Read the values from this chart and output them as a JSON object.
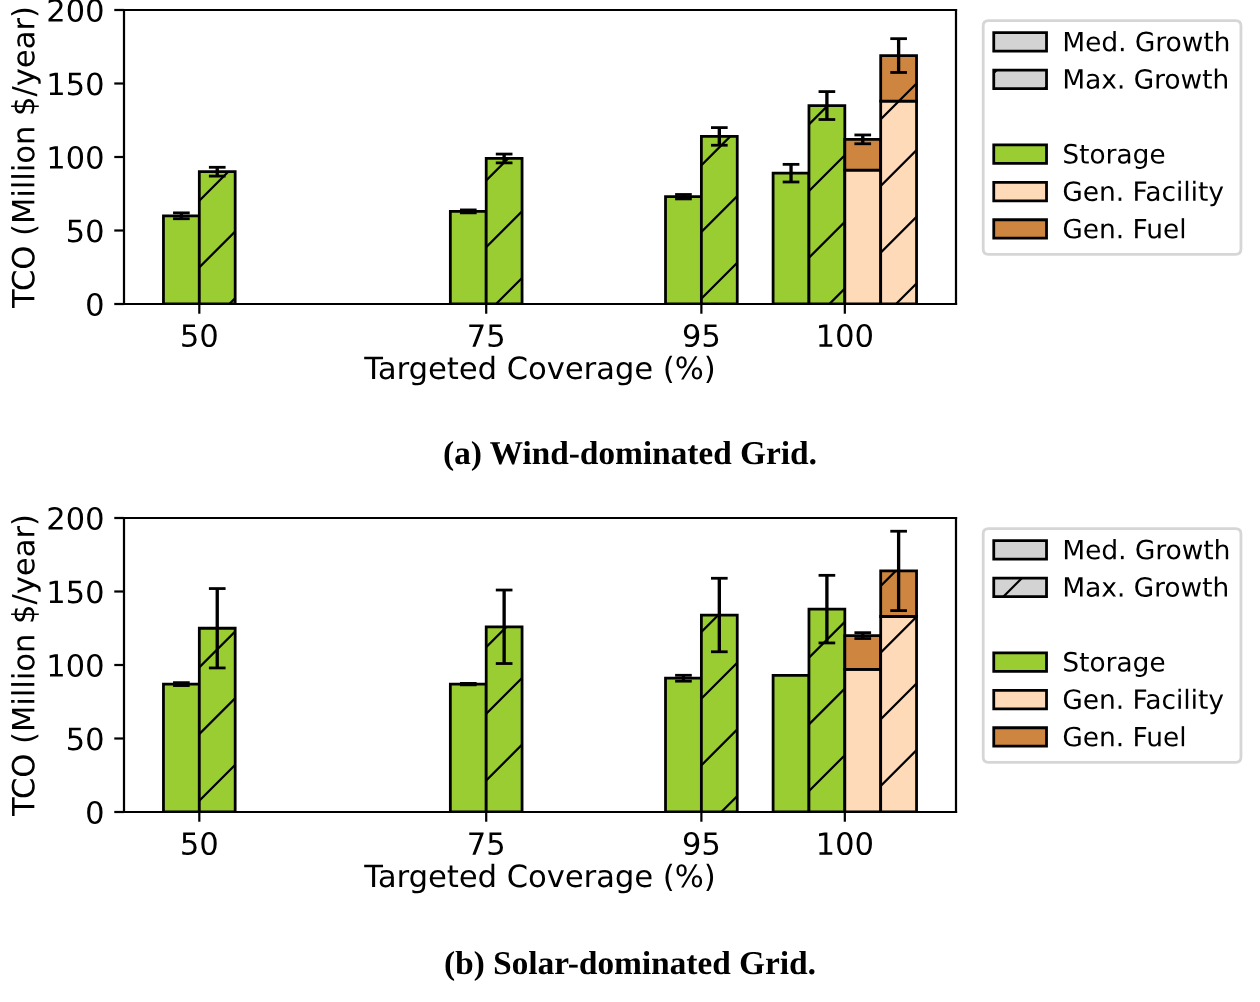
{
  "chart_data": [
    {
      "type": "bar",
      "stacked": true,
      "categories": [
        "50",
        null,
        null,
        null,
        null,
        null,
        null,
        null,
        "75",
        null,
        null,
        null,
        null,
        null,
        "95",
        null,
        null,
        null,
        "100",
        null,
        null
      ],
      "xlabel": "Targeted Coverage (%)",
      "ylabel": "TCO (Million $/year)",
      "ylim": [
        0,
        200
      ],
      "yticks": [
        0,
        50,
        100,
        150,
        200
      ],
      "legend": "right",
      "annotations": [
        "(a) Wind-dominated Grid.",
        "Med. Growth",
        "Max. Growth"
      ],
      "series": [
        {
          "name": "Storage",
          "color": "#9acd32",
          "values": [
            60,
            null,
            null,
            null,
            null,
            null,
            null,
            null,
            63,
            null,
            null,
            null,
            null,
            null,
            73,
            null,
            null,
            89,
            null,
            null,
            null
          ],
          "errors": [
            2,
            null,
            null,
            null,
            null,
            null,
            null,
            null,
            1,
            null,
            null,
            null,
            null,
            null,
            1.5,
            null,
            null,
            6,
            null,
            null,
            null
          ]
        },
        {
          "color": "#9acd32",
          "values": [
            null,
            90,
            null,
            null,
            null,
            null,
            null,
            null,
            null,
            99,
            null,
            null,
            null,
            null,
            null,
            114,
            null,
            null,
            135,
            null,
            null
          ],
          "errors": [
            null,
            3,
            null,
            null,
            null,
            null,
            null,
            null,
            null,
            3,
            null,
            null,
            null,
            null,
            null,
            6,
            null,
            null,
            9.5,
            null,
            null
          ]
        },
        {
          "name": "Gen. Facility",
          "color": "#ffdab9",
          "values": [
            null,
            null,
            null,
            null,
            null,
            null,
            null,
            null,
            null,
            null,
            null,
            null,
            null,
            null,
            null,
            null,
            null,
            null,
            null,
            91,
            null
          ]
        },
        {
          "name": "Gen. Fuel",
          "color": "#cd853f",
          "values": [
            null,
            null,
            null,
            null,
            null,
            null,
            null,
            null,
            null,
            null,
            null,
            null,
            null,
            null,
            null,
            null,
            null,
            null,
            null,
            21,
            null
          ],
          "errors": [
            null,
            null,
            null,
            null,
            null,
            null,
            null,
            null,
            null,
            null,
            null,
            null,
            null,
            null,
            null,
            null,
            null,
            null,
            null,
            3,
            null
          ]
        },
        {
          "color": "#ffdab9",
          "values": [
            null,
            null,
            null,
            null,
            null,
            null,
            null,
            null,
            null,
            null,
            null,
            null,
            null,
            null,
            null,
            null,
            null,
            null,
            null,
            null,
            138
          ]
        },
        {
          "color": "#cd853f",
          "values": [
            null,
            null,
            null,
            null,
            null,
            null,
            null,
            null,
            null,
            null,
            null,
            null,
            null,
            null,
            null,
            null,
            null,
            null,
            null,
            null,
            31
          ],
          "errors": [
            null,
            null,
            null,
            null,
            null,
            null,
            null,
            null,
            null,
            null,
            null,
            null,
            null,
            null,
            null,
            null,
            null,
            null,
            null,
            null,
            11.5
          ]
        }
      ]
    },
    {
      "type": "bar",
      "stacked": true,
      "categories": [
        "50",
        null,
        null,
        null,
        null,
        null,
        null,
        null,
        "75",
        null,
        null,
        null,
        null,
        null,
        "95",
        null,
        null,
        null,
        "100",
        null,
        null
      ],
      "xlabel": "Targeted Coverage (%)",
      "ylabel": "TCO (Million $/year)",
      "ylim": [
        0,
        200
      ],
      "yticks": [
        0,
        50,
        100,
        150,
        200
      ],
      "legend": "right",
      "annotations": [
        "(b) Solar-dominated Grid.",
        "Med. Growth",
        "Max. Growth"
      ],
      "series": [
        {
          "name": "Storage",
          "color": "#9acd32",
          "values": [
            87,
            null,
            null,
            null,
            null,
            null,
            null,
            null,
            87,
            null,
            null,
            null,
            null,
            null,
            91,
            null,
            null,
            93,
            null,
            null,
            null
          ],
          "errors": [
            1,
            null,
            null,
            null,
            null,
            null,
            null,
            null,
            0.5,
            null,
            null,
            null,
            null,
            null,
            2,
            null,
            null,
            null,
            null,
            null,
            null
          ]
        },
        {
          "color": "#9acd32",
          "values": [
            null,
            125,
            null,
            null,
            null,
            null,
            null,
            null,
            null,
            126,
            null,
            null,
            null,
            null,
            null,
            134,
            null,
            null,
            138,
            null,
            null
          ],
          "errors": [
            null,
            27,
            null,
            null,
            null,
            null,
            null,
            null,
            null,
            25,
            null,
            null,
            null,
            null,
            null,
            25,
            null,
            null,
            23,
            null,
            null
          ]
        },
        {
          "name": "Gen. Facility",
          "color": "#ffdab9",
          "values": [
            null,
            null,
            null,
            null,
            null,
            null,
            null,
            null,
            null,
            null,
            null,
            null,
            null,
            null,
            null,
            null,
            null,
            null,
            null,
            97,
            null
          ]
        },
        {
          "name": "Gen. Fuel",
          "color": "#cd853f",
          "values": [
            null,
            null,
            null,
            null,
            null,
            null,
            null,
            null,
            null,
            null,
            null,
            null,
            null,
            null,
            null,
            null,
            null,
            null,
            null,
            23,
            null
          ],
          "errors": [
            null,
            null,
            null,
            null,
            null,
            null,
            null,
            null,
            null,
            null,
            null,
            null,
            null,
            null,
            null,
            null,
            null,
            null,
            null,
            2,
            null
          ]
        },
        {
          "color": "#ffdab9",
          "values": [
            null,
            null,
            null,
            null,
            null,
            null,
            null,
            null,
            null,
            null,
            null,
            null,
            null,
            null,
            null,
            null,
            null,
            null,
            null,
            null,
            133
          ]
        },
        {
          "color": "#cd853f",
          "values": [
            null,
            null,
            null,
            null,
            null,
            null,
            null,
            null,
            null,
            null,
            null,
            null,
            null,
            null,
            null,
            null,
            null,
            null,
            null,
            null,
            31
          ],
          "errors": [
            null,
            null,
            null,
            null,
            null,
            null,
            null,
            null,
            null,
            null,
            null,
            null,
            null,
            null,
            null,
            null,
            null,
            null,
            null,
            null,
            27
          ]
        }
      ]
    }
  ]
}
